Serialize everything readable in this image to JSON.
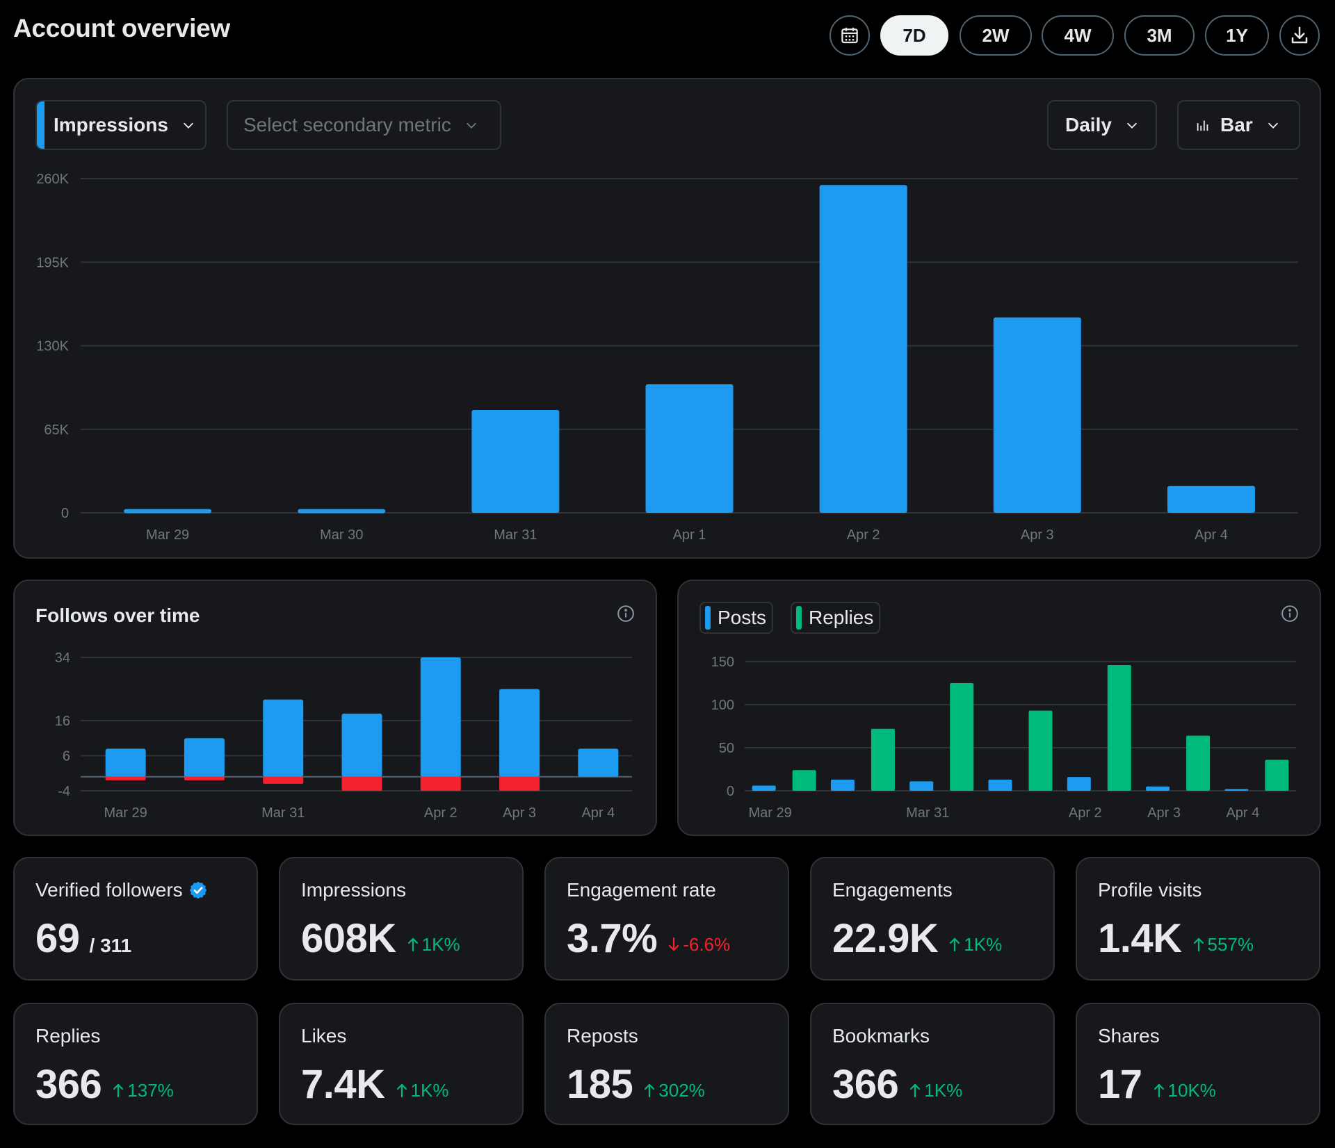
{
  "header": {
    "title": "Account overview",
    "ranges": [
      "7D",
      "2W",
      "4W",
      "3M",
      "1Y"
    ],
    "active_range": "7D"
  },
  "main_chart": {
    "primary_metric": "Impressions",
    "secondary_placeholder": "Select secondary metric",
    "interval": "Daily",
    "chart_type": "Bar"
  },
  "follows_card": {
    "title": "Follows over time"
  },
  "posts_card": {
    "legend": [
      "Posts",
      "Replies"
    ]
  },
  "stats": [
    {
      "label": "Verified followers",
      "value": "69",
      "sub": "/ 311",
      "delta": "",
      "dir": "none",
      "verified": true
    },
    {
      "label": "Impressions",
      "value": "608K",
      "delta": "1K%",
      "dir": "up"
    },
    {
      "label": "Engagement rate",
      "value": "3.7%",
      "delta": "-6.6%",
      "dir": "down"
    },
    {
      "label": "Engagements",
      "value": "22.9K",
      "delta": "1K%",
      "dir": "up"
    },
    {
      "label": "Profile visits",
      "value": "1.4K",
      "delta": "557%",
      "dir": "up"
    },
    {
      "label": "Replies",
      "value": "366",
      "delta": "137%",
      "dir": "up"
    },
    {
      "label": "Likes",
      "value": "7.4K",
      "delta": "1K%",
      "dir": "up"
    },
    {
      "label": "Reposts",
      "value": "185",
      "delta": "302%",
      "dir": "up"
    },
    {
      "label": "Bookmarks",
      "value": "366",
      "delta": "1K%",
      "dir": "up"
    },
    {
      "label": "Shares",
      "value": "17",
      "delta": "10K%",
      "dir": "up"
    }
  ],
  "colors": {
    "blue": "#1d9bf0",
    "green": "#00ba7c",
    "red": "#f4212e"
  },
  "chart_data": [
    {
      "type": "bar",
      "title": "Impressions",
      "categories": [
        "Mar 29",
        "Mar 30",
        "Mar 31",
        "Apr 1",
        "Apr 2",
        "Apr 3",
        "Apr 4"
      ],
      "values": [
        3000,
        3000,
        80000,
        100000,
        255000,
        152000,
        21000
      ],
      "yticks": [
        "0",
        "65K",
        "130K",
        "195K",
        "260K"
      ],
      "ylim": [
        0,
        260000
      ]
    },
    {
      "type": "bar",
      "title": "Follows over time",
      "categories": [
        "Mar 29",
        "Mar 30",
        "Mar 31",
        "Apr 1",
        "Apr 2",
        "Apr 3",
        "Apr 4"
      ],
      "xtick_labels": [
        "Mar 29",
        "",
        "Mar 31",
        "",
        "Apr 2",
        "Apr 3",
        "Apr 4"
      ],
      "series": [
        {
          "name": "Follows",
          "values": [
            8,
            11,
            22,
            18,
            34,
            25,
            8
          ]
        },
        {
          "name": "Unfollows",
          "values": [
            -1,
            -1,
            -2,
            -4,
            -4,
            -4,
            0
          ]
        }
      ],
      "yticks": [
        "-4",
        "6",
        "16",
        "34"
      ],
      "ylim": [
        -4,
        34
      ]
    },
    {
      "type": "bar",
      "title": "Posts and Replies",
      "categories": [
        "Mar 29",
        "Mar 30",
        "Mar 31",
        "Apr 1",
        "Apr 2",
        "Apr 3",
        "Apr 4"
      ],
      "xtick_labels": [
        "Mar 29",
        "",
        "Mar 31",
        "",
        "Apr 2",
        "Apr 3",
        "Apr 4"
      ],
      "series": [
        {
          "name": "Posts",
          "values": [
            6,
            13,
            11,
            13,
            16,
            5,
            2
          ]
        },
        {
          "name": "Replies",
          "values": [
            24,
            72,
            125,
            93,
            146,
            64,
            36
          ]
        }
      ],
      "yticks": [
        "0",
        "50",
        "100",
        "150"
      ],
      "ylim": [
        0,
        150
      ]
    }
  ]
}
